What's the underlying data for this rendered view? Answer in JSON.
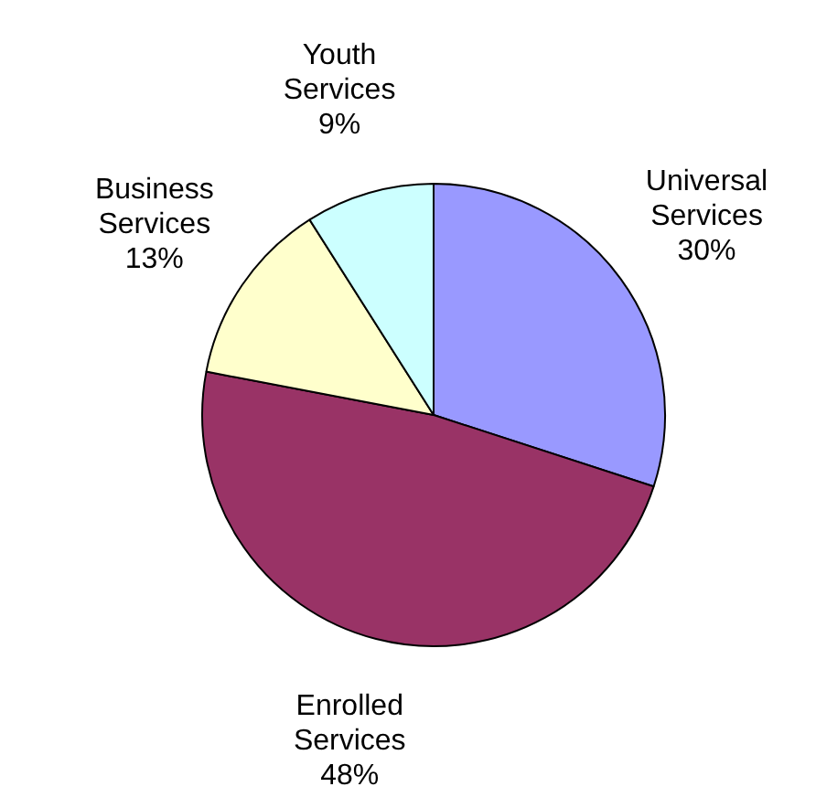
{
  "chart_data": {
    "type": "pie",
    "categories": [
      "Universal Services",
      "Enrolled Services",
      "Business Services",
      "Youth Services"
    ],
    "values": [
      30,
      48,
      13,
      9
    ],
    "colors": [
      "#9999ff",
      "#993366",
      "#ffffcc",
      "#ccffff"
    ],
    "value_labels": [
      "30%",
      "48%",
      "13%",
      "9%"
    ],
    "legend": false
  }
}
